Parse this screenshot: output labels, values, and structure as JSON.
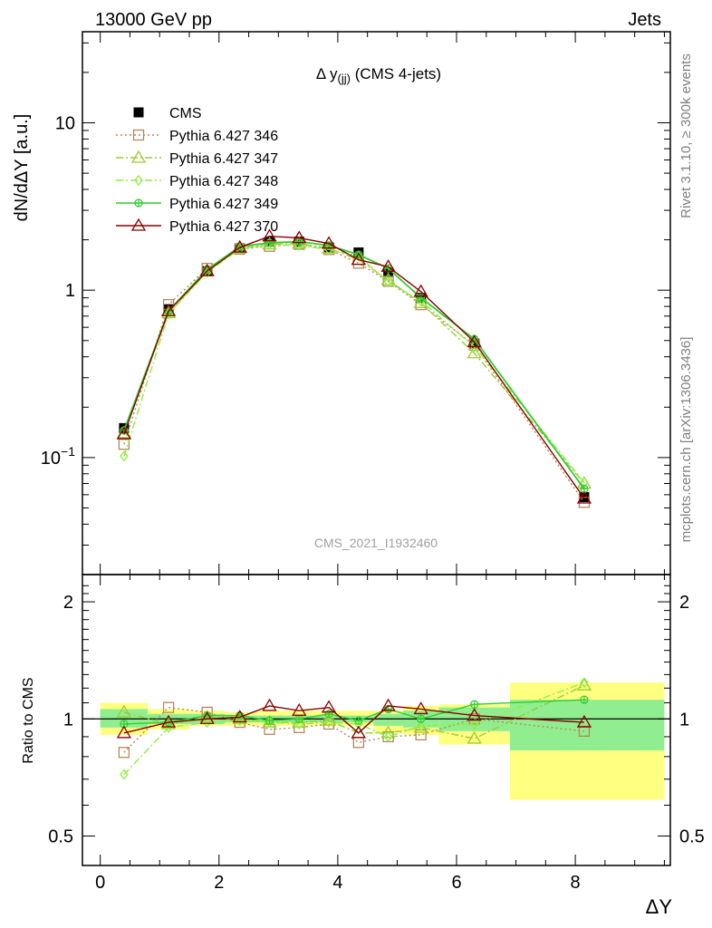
{
  "header": {
    "left": "13000 GeV pp",
    "right": "Jets"
  },
  "main_title": {
    "pre": "Δ y",
    "sub": "(jj)",
    "post": " (CMS 4-jets)"
  },
  "side_labels": {
    "rivet": "Rivet 3.1.10, ≥ 300k events",
    "mcplots": "mcplots.cern.ch [arXiv:1306.3436]"
  },
  "watermark": "CMS_2021_I1932460",
  "colors": {
    "CMS": "#000000",
    "p346": "#b8875a",
    "p347": "#9acd32",
    "p348": "#90ee40",
    "p349": "#32cd32",
    "p370": "#8b0000",
    "band_stat": "#90ee90",
    "band_syst": "#ffff80"
  },
  "chart_data": [
    {
      "type": "line",
      "panel": "main",
      "ylabel": "dN/dΔY [a.u.]",
      "yscale": "log",
      "ylim": [
        0.02,
        35
      ],
      "xlim": [
        -0.3,
        9.6
      ],
      "yticks": [
        {
          "v": 0.1,
          "base": "10",
          "exp": "−1"
        },
        {
          "v": 1,
          "text": "1"
        },
        {
          "v": 10,
          "text": "10"
        }
      ],
      "x": [
        0.4,
        1.15,
        1.8,
        2.35,
        2.85,
        3.35,
        3.85,
        4.35,
        4.85,
        5.4,
        6.3,
        8.15
      ],
      "series": [
        {
          "name": "CMS",
          "key": "CMS",
          "marker": "square-filled",
          "line": "none",
          "values": [
            0.15,
            0.77,
            1.3,
            1.78,
            1.95,
            1.95,
            1.8,
            1.68,
            1.28,
            0.9,
            0.48,
            0.058
          ]
        },
        {
          "name": "Pythia 6.427 346",
          "key": "p346",
          "marker": "square-open",
          "line": "dotted",
          "values": [
            0.12,
            0.82,
            1.35,
            1.76,
            1.83,
            1.88,
            1.75,
            1.45,
            1.13,
            0.82,
            0.47,
            0.054
          ]
        },
        {
          "name": "Pythia 6.427 347",
          "key": "p347",
          "marker": "triangle-open",
          "line": "dashdot",
          "values": [
            0.14,
            0.73,
            1.3,
            1.78,
            1.88,
            1.9,
            1.78,
            1.52,
            1.15,
            0.84,
            0.42,
            0.07
          ]
        },
        {
          "name": "Pythia 6.427 348",
          "key": "p348",
          "marker": "diamond-open",
          "line": "dashdot",
          "values": [
            0.102,
            0.72,
            1.28,
            1.76,
            1.87,
            1.85,
            1.75,
            1.6,
            1.12,
            0.86,
            0.46,
            0.071
          ]
        },
        {
          "name": "Pythia 6.427 349",
          "key": "p349",
          "marker": "circle-cross",
          "line": "solid",
          "values": [
            0.145,
            0.75,
            1.33,
            1.82,
            1.92,
            1.95,
            1.85,
            1.63,
            1.35,
            0.9,
            0.51,
            0.065
          ]
        },
        {
          "name": "Pythia 6.427 370",
          "key": "p370",
          "marker": "triangle-open",
          "line": "solid",
          "values": [
            0.138,
            0.75,
            1.3,
            1.8,
            2.1,
            2.05,
            1.9,
            1.52,
            1.38,
            0.98,
            0.49,
            0.057
          ]
        }
      ]
    },
    {
      "type": "line",
      "panel": "ratio",
      "ylabel": "Ratio to CMS",
      "xlabel": "ΔY",
      "ylim": [
        0.42,
        2.35
      ],
      "xlim": [
        -0.3,
        9.6
      ],
      "xticks": [
        0,
        2,
        4,
        6,
        8
      ],
      "yticks": [
        0.5,
        1,
        2
      ],
      "reference_line": 1,
      "bands": {
        "bins": [
          [
            0,
            0.8
          ],
          [
            0.8,
            1.5
          ],
          [
            1.5,
            2.1
          ],
          [
            2.1,
            2.6
          ],
          [
            2.6,
            3.1
          ],
          [
            3.1,
            3.6
          ],
          [
            3.6,
            4.1
          ],
          [
            4.1,
            4.6
          ],
          [
            4.6,
            5.1
          ],
          [
            5.1,
            5.7
          ],
          [
            5.7,
            6.9
          ],
          [
            6.9,
            9.5
          ]
        ],
        "syst": [
          [
            0.91,
            1.1
          ],
          [
            0.94,
            1.06
          ],
          [
            0.96,
            1.05
          ],
          [
            0.96,
            1.04
          ],
          [
            0.96,
            1.05
          ],
          [
            0.96,
            1.05
          ],
          [
            0.96,
            1.05
          ],
          [
            0.96,
            1.05
          ],
          [
            0.92,
            1.05
          ],
          [
            0.91,
            1.08
          ],
          [
            0.86,
            1.09
          ],
          [
            0.62,
            1.24
          ]
        ],
        "stat": [
          [
            0.95,
            1.06
          ],
          [
            0.97,
            1.03
          ],
          [
            0.97,
            1.03
          ],
          [
            0.98,
            1.02
          ],
          [
            0.98,
            1.02
          ],
          [
            0.98,
            1.02
          ],
          [
            0.98,
            1.02
          ],
          [
            0.98,
            1.02
          ],
          [
            0.96,
            1.03
          ],
          [
            0.95,
            1.05
          ],
          [
            0.93,
            1.07
          ],
          [
            0.83,
            1.12
          ]
        ]
      },
      "x": [
        0.4,
        1.15,
        1.8,
        2.35,
        2.85,
        3.35,
        3.85,
        4.35,
        4.85,
        5.4,
        6.3,
        8.15
      ],
      "series": [
        {
          "name": "Pythia 6.427 346",
          "key": "p346",
          "values": [
            0.82,
            1.07,
            1.04,
            0.98,
            0.94,
            0.95,
            0.97,
            0.87,
            0.9,
            0.91,
            1.0,
            0.93
          ]
        },
        {
          "name": "Pythia 6.427 347",
          "key": "p347",
          "values": [
            1.04,
            0.97,
            1.01,
            1.0,
            0.98,
            0.98,
            0.99,
            0.92,
            0.92,
            0.95,
            0.89,
            1.22
          ]
        },
        {
          "name": "Pythia 6.427 348",
          "key": "p348",
          "values": [
            0.72,
            0.95,
            0.98,
            0.99,
            0.98,
            0.97,
            0.98,
            0.97,
            0.9,
            0.96,
            0.97,
            1.24
          ]
        },
        {
          "name": "Pythia 6.427 349",
          "key": "p349",
          "values": [
            0.97,
            0.98,
            1.02,
            1.02,
            0.99,
            1.0,
            1.03,
            0.99,
            1.06,
            1.0,
            1.09,
            1.12
          ]
        },
        {
          "name": "Pythia 6.427 370",
          "key": "p370",
          "values": [
            0.92,
            0.98,
            1.0,
            1.01,
            1.08,
            1.05,
            1.07,
            0.92,
            1.08,
            1.06,
            1.02,
            0.98
          ]
        }
      ]
    }
  ]
}
